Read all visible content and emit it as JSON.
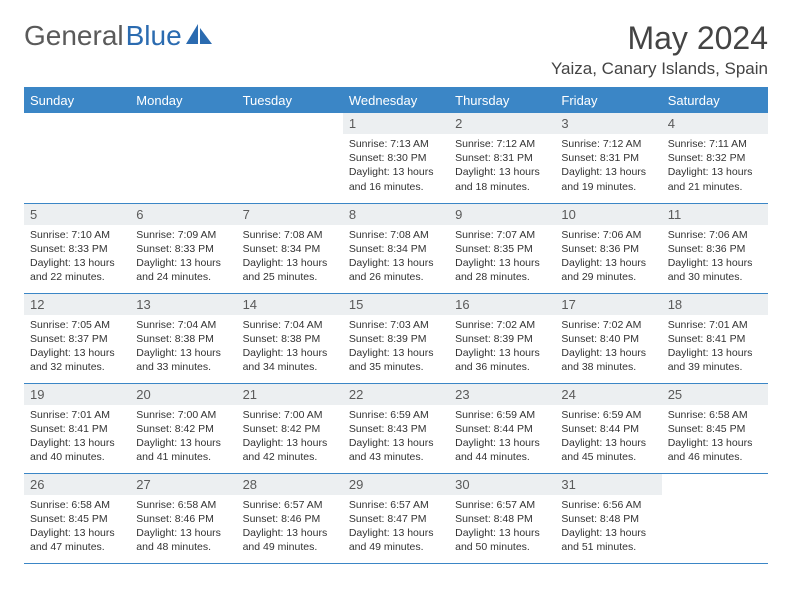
{
  "brand": {
    "part1": "General",
    "part2": "Blue"
  },
  "title": "May 2024",
  "location": "Yaiza, Canary Islands, Spain",
  "colors": {
    "header_bg": "#3b86c6",
    "header_text": "#ffffff",
    "daynum_bg": "#eceff1",
    "rule": "#3b86c6",
    "brand_accent": "#2b6bb0"
  },
  "weekdays": [
    "Sunday",
    "Monday",
    "Tuesday",
    "Wednesday",
    "Thursday",
    "Friday",
    "Saturday"
  ],
  "weeks": [
    [
      null,
      null,
      null,
      {
        "n": "1",
        "sr": "7:13 AM",
        "ss": "8:30 PM",
        "dl": "13 hours and 16 minutes."
      },
      {
        "n": "2",
        "sr": "7:12 AM",
        "ss": "8:31 PM",
        "dl": "13 hours and 18 minutes."
      },
      {
        "n": "3",
        "sr": "7:12 AM",
        "ss": "8:31 PM",
        "dl": "13 hours and 19 minutes."
      },
      {
        "n": "4",
        "sr": "7:11 AM",
        "ss": "8:32 PM",
        "dl": "13 hours and 21 minutes."
      }
    ],
    [
      {
        "n": "5",
        "sr": "7:10 AM",
        "ss": "8:33 PM",
        "dl": "13 hours and 22 minutes."
      },
      {
        "n": "6",
        "sr": "7:09 AM",
        "ss": "8:33 PM",
        "dl": "13 hours and 24 minutes."
      },
      {
        "n": "7",
        "sr": "7:08 AM",
        "ss": "8:34 PM",
        "dl": "13 hours and 25 minutes."
      },
      {
        "n": "8",
        "sr": "7:08 AM",
        "ss": "8:34 PM",
        "dl": "13 hours and 26 minutes."
      },
      {
        "n": "9",
        "sr": "7:07 AM",
        "ss": "8:35 PM",
        "dl": "13 hours and 28 minutes."
      },
      {
        "n": "10",
        "sr": "7:06 AM",
        "ss": "8:36 PM",
        "dl": "13 hours and 29 minutes."
      },
      {
        "n": "11",
        "sr": "7:06 AM",
        "ss": "8:36 PM",
        "dl": "13 hours and 30 minutes."
      }
    ],
    [
      {
        "n": "12",
        "sr": "7:05 AM",
        "ss": "8:37 PM",
        "dl": "13 hours and 32 minutes."
      },
      {
        "n": "13",
        "sr": "7:04 AM",
        "ss": "8:38 PM",
        "dl": "13 hours and 33 minutes."
      },
      {
        "n": "14",
        "sr": "7:04 AM",
        "ss": "8:38 PM",
        "dl": "13 hours and 34 minutes."
      },
      {
        "n": "15",
        "sr": "7:03 AM",
        "ss": "8:39 PM",
        "dl": "13 hours and 35 minutes."
      },
      {
        "n": "16",
        "sr": "7:02 AM",
        "ss": "8:39 PM",
        "dl": "13 hours and 36 minutes."
      },
      {
        "n": "17",
        "sr": "7:02 AM",
        "ss": "8:40 PM",
        "dl": "13 hours and 38 minutes."
      },
      {
        "n": "18",
        "sr": "7:01 AM",
        "ss": "8:41 PM",
        "dl": "13 hours and 39 minutes."
      }
    ],
    [
      {
        "n": "19",
        "sr": "7:01 AM",
        "ss": "8:41 PM",
        "dl": "13 hours and 40 minutes."
      },
      {
        "n": "20",
        "sr": "7:00 AM",
        "ss": "8:42 PM",
        "dl": "13 hours and 41 minutes."
      },
      {
        "n": "21",
        "sr": "7:00 AM",
        "ss": "8:42 PM",
        "dl": "13 hours and 42 minutes."
      },
      {
        "n": "22",
        "sr": "6:59 AM",
        "ss": "8:43 PM",
        "dl": "13 hours and 43 minutes."
      },
      {
        "n": "23",
        "sr": "6:59 AM",
        "ss": "8:44 PM",
        "dl": "13 hours and 44 minutes."
      },
      {
        "n": "24",
        "sr": "6:59 AM",
        "ss": "8:44 PM",
        "dl": "13 hours and 45 minutes."
      },
      {
        "n": "25",
        "sr": "6:58 AM",
        "ss": "8:45 PM",
        "dl": "13 hours and 46 minutes."
      }
    ],
    [
      {
        "n": "26",
        "sr": "6:58 AM",
        "ss": "8:45 PM",
        "dl": "13 hours and 47 minutes."
      },
      {
        "n": "27",
        "sr": "6:58 AM",
        "ss": "8:46 PM",
        "dl": "13 hours and 48 minutes."
      },
      {
        "n": "28",
        "sr": "6:57 AM",
        "ss": "8:46 PM",
        "dl": "13 hours and 49 minutes."
      },
      {
        "n": "29",
        "sr": "6:57 AM",
        "ss": "8:47 PM",
        "dl": "13 hours and 49 minutes."
      },
      {
        "n": "30",
        "sr": "6:57 AM",
        "ss": "8:48 PM",
        "dl": "13 hours and 50 minutes."
      },
      {
        "n": "31",
        "sr": "6:56 AM",
        "ss": "8:48 PM",
        "dl": "13 hours and 51 minutes."
      },
      null
    ]
  ],
  "labels": {
    "sunrise": "Sunrise: ",
    "sunset": "Sunset: ",
    "daylight": "Daylight: "
  }
}
